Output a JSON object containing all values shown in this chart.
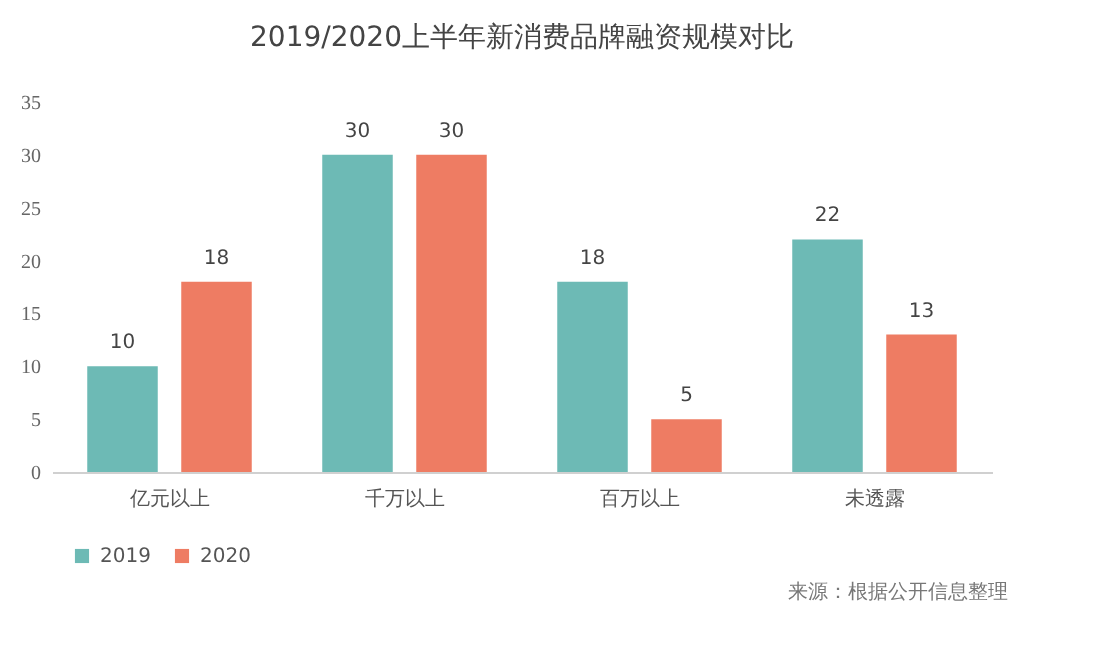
{
  "chart_data": {
    "type": "bar",
    "title": "2019/2020上半年新消费品牌融资规模对比",
    "categories": [
      "亿元以上",
      "千万以上",
      "百万以上",
      "未透露"
    ],
    "series": [
      {
        "name": "2019",
        "color": "#6dbab5",
        "values": [
          10,
          30,
          18,
          22
        ]
      },
      {
        "name": "2020",
        "color": "#ee7c63",
        "values": [
          18,
          30,
          5,
          13
        ]
      }
    ],
    "ylim": [
      0,
      35
    ],
    "yticks": [
      0,
      5,
      10,
      15,
      20,
      25,
      30,
      35
    ],
    "grid": false,
    "data_labels": true,
    "legend": "bottom left",
    "annotations": [
      "来源：根据公开信息整理"
    ]
  }
}
